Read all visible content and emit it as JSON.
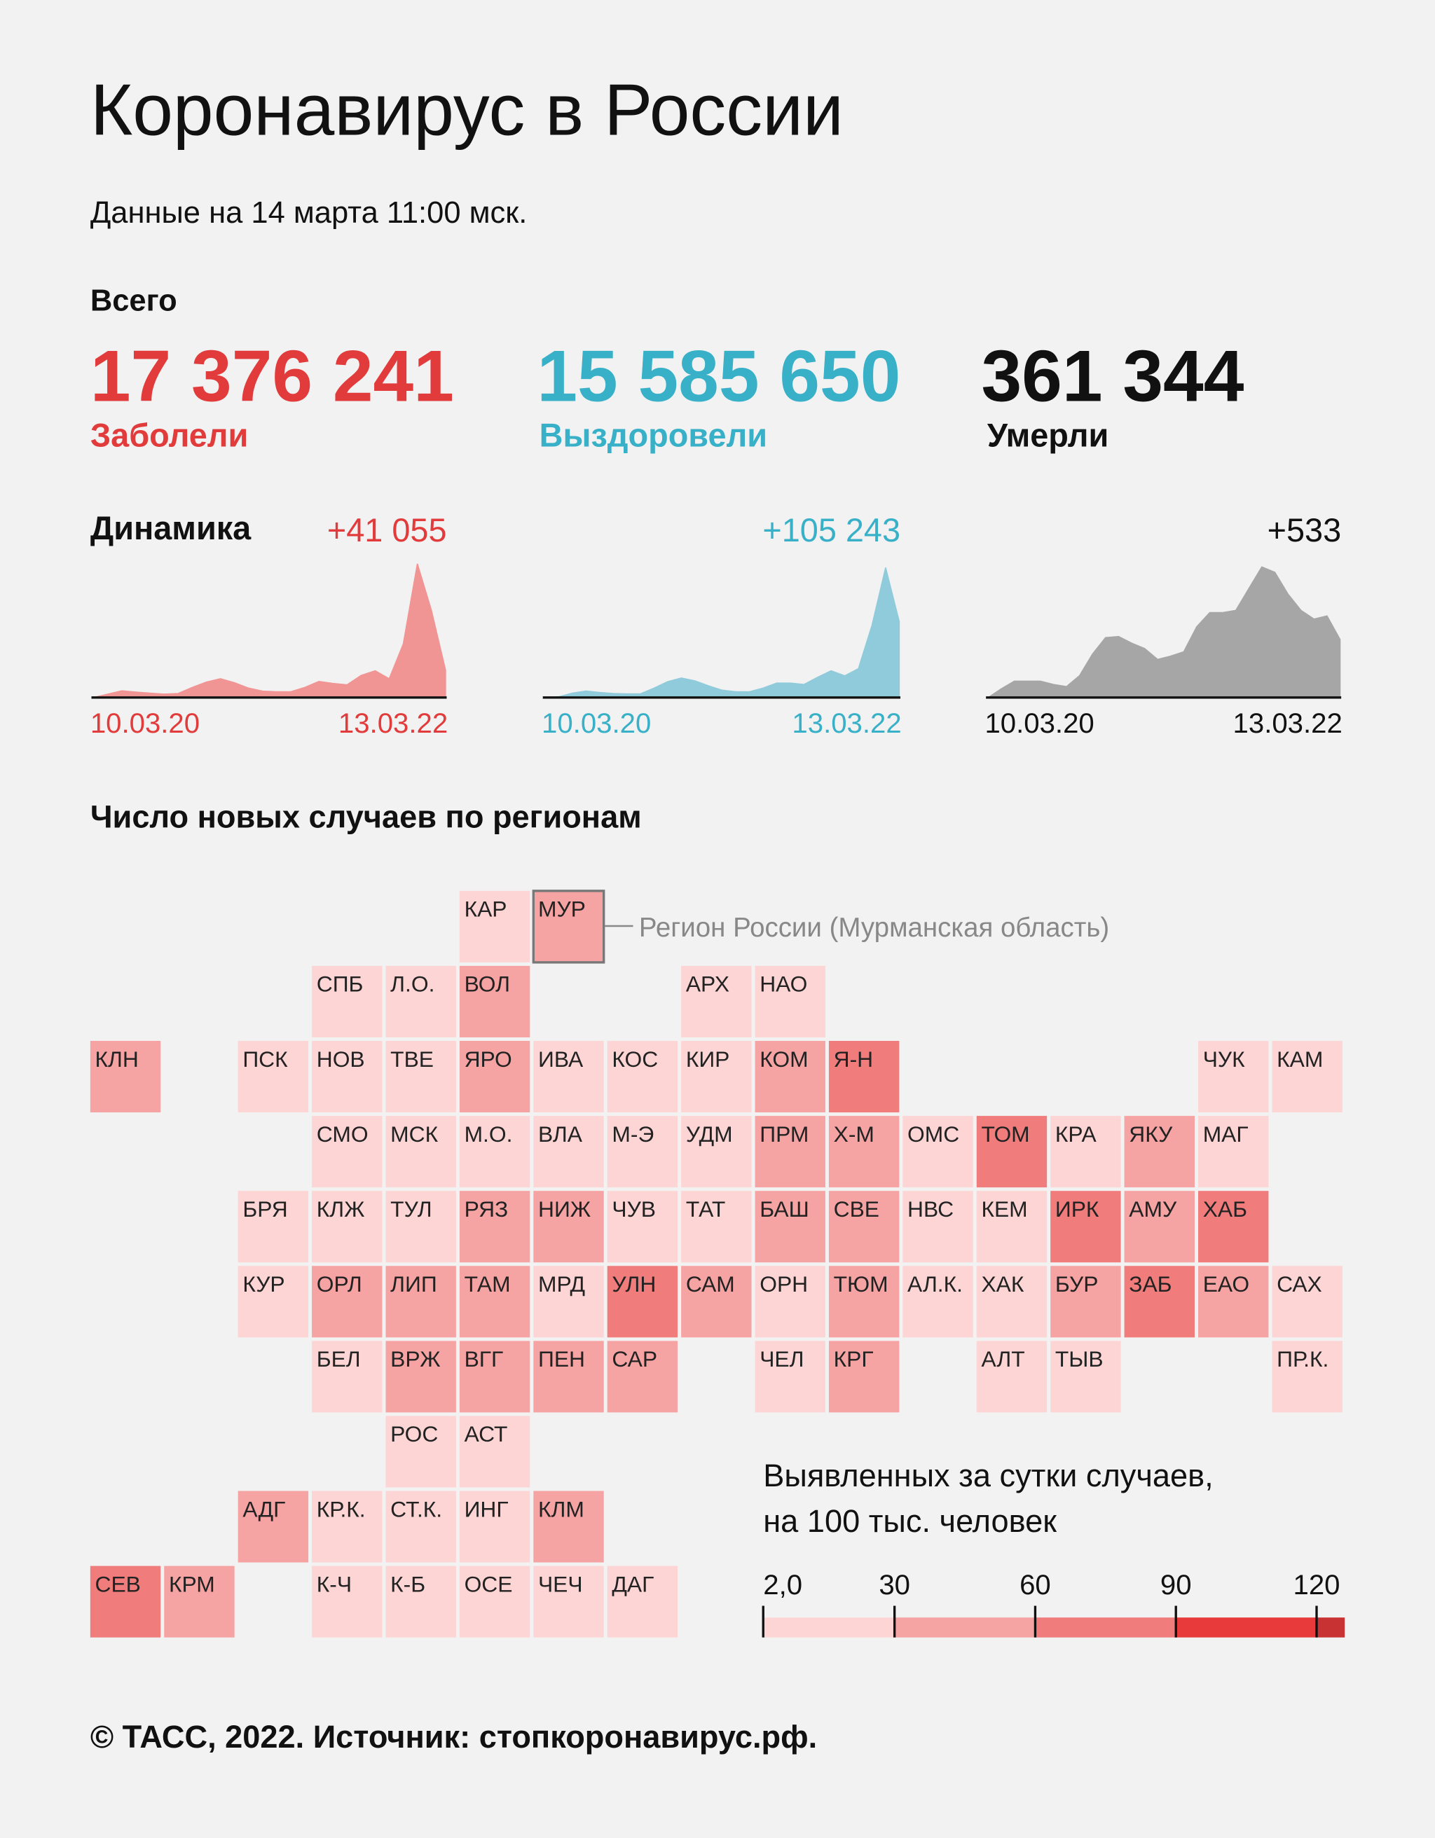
{
  "header": {
    "title": "Коронавирус в России",
    "subtitle": "Данные на 14 марта 11:00 мск."
  },
  "totals": {
    "heading": "Всего",
    "items": [
      {
        "value": "17 376 241",
        "label": "Заболели",
        "color": "#e23b3b"
      },
      {
        "value": "15 585 650",
        "label": "Выздоровели",
        "color": "#38b0c8"
      },
      {
        "value": "361 344",
        "label": "Умерли",
        "color": "#111111"
      }
    ]
  },
  "dynamics": {
    "heading": "Динамика",
    "charts": [
      {
        "type": "area",
        "increment": "+41 055",
        "color": "#e23b3b",
        "fill": "#f19494",
        "x_start": "10.03.20",
        "x_end": "13.03.22",
        "ylim": [
          0,
          205000
        ],
        "values": [
          0,
          5000,
          10000,
          8000,
          6500,
          5000,
          6000,
          15000,
          23000,
          28000,
          22000,
          14000,
          9500,
          8500,
          8500,
          15000,
          24000,
          21000,
          19000,
          33000,
          40000,
          28000,
          80000,
          200000,
          130000,
          41055
        ]
      },
      {
        "type": "area",
        "increment": "+105 243",
        "color": "#38b0c8",
        "fill": "#8fcbda",
        "x_start": "10.03.20",
        "x_end": "13.03.22",
        "ylim": [
          0,
          190000
        ],
        "values": [
          0,
          1000,
          6000,
          9000,
          7000,
          5500,
          5000,
          5000,
          13000,
          22000,
          27000,
          23000,
          16000,
          10000,
          8000,
          8000,
          13000,
          20000,
          20000,
          18000,
          28000,
          37000,
          30000,
          40000,
          100000,
          180000,
          105243
        ]
      },
      {
        "type": "area",
        "increment": "+533",
        "color": "#111111",
        "fill": "#a6a6a6",
        "x_start": "10.03.20",
        "x_end": "13.03.22",
        "ylim": [
          0,
          1260
        ],
        "values": [
          0,
          80,
          150,
          150,
          150,
          120,
          100,
          200,
          400,
          550,
          560,
          500,
          450,
          350,
          380,
          420,
          650,
          780,
          780,
          800,
          1000,
          1200,
          1150,
          950,
          800,
          720,
          750,
          533
        ]
      }
    ]
  },
  "map": {
    "title": "Число новых случаев по регионам",
    "note": "Регион России (Мурманская область)",
    "regions": [
      {
        "label": "КАР",
        "color": "#fdd5d5"
      },
      {
        "label": "МУР",
        "color": "#f6a3a3"
      },
      {
        "label": "СПБ",
        "color": "#fdd5d5"
      },
      {
        "label": "Л.О.",
        "color": "#fdd5d5"
      },
      {
        "label": "ВОЛ",
        "color": "#f6a3a3"
      },
      {
        "label": "АРХ",
        "color": "#fdd5d5"
      },
      {
        "label": "НАО",
        "color": "#fdd5d5"
      },
      {
        "label": "КЛН",
        "color": "#f6a3a3"
      },
      {
        "label": "ПСК",
        "color": "#fdd5d5"
      },
      {
        "label": "НОВ",
        "color": "#fdd5d5"
      },
      {
        "label": "ТВЕ",
        "color": "#fdd5d5"
      },
      {
        "label": "ЯРО",
        "color": "#f6a3a3"
      },
      {
        "label": "ИВА",
        "color": "#fdd5d5"
      },
      {
        "label": "КОС",
        "color": "#fdd5d5"
      },
      {
        "label": "КИР",
        "color": "#fdd5d5"
      },
      {
        "label": "КОМ",
        "color": "#f6a3a3"
      },
      {
        "label": "Я-Н",
        "color": "#f07c7c"
      },
      {
        "label": "ЧУК",
        "color": "#fdd5d5"
      },
      {
        "label": "КАМ",
        "color": "#fdd5d5"
      },
      {
        "label": "СМО",
        "color": "#fdd5d5"
      },
      {
        "label": "МСК",
        "color": "#fdd5d5"
      },
      {
        "label": "М.О.",
        "color": "#fdd5d5"
      },
      {
        "label": "ВЛА",
        "color": "#fdd5d5"
      },
      {
        "label": "М-Э",
        "color": "#fdd5d5"
      },
      {
        "label": "УДМ",
        "color": "#fdd5d5"
      },
      {
        "label": "ПРМ",
        "color": "#f6a3a3"
      },
      {
        "label": "Х-М",
        "color": "#f6a3a3"
      },
      {
        "label": "ОМС",
        "color": "#fdd5d5"
      },
      {
        "label": "ТОМ",
        "color": "#f07c7c"
      },
      {
        "label": "КРА",
        "color": "#fdd5d5"
      },
      {
        "label": "ЯКУ",
        "color": "#f6a3a3"
      },
      {
        "label": "МАГ",
        "color": "#fdd5d5"
      },
      {
        "label": "БРЯ",
        "color": "#fdd5d5"
      },
      {
        "label": "КЛЖ",
        "color": "#fdd5d5"
      },
      {
        "label": "ТУЛ",
        "color": "#fdd5d5"
      },
      {
        "label": "РЯЗ",
        "color": "#f6a3a3"
      },
      {
        "label": "НИЖ",
        "color": "#f6a3a3"
      },
      {
        "label": "ЧУВ",
        "color": "#fdd5d5"
      },
      {
        "label": "ТАТ",
        "color": "#fdd5d5"
      },
      {
        "label": "БАШ",
        "color": "#f6a3a3"
      },
      {
        "label": "СВЕ",
        "color": "#f6a3a3"
      },
      {
        "label": "НВС",
        "color": "#fdd5d5"
      },
      {
        "label": "КЕМ",
        "color": "#fdd5d5"
      },
      {
        "label": "ИРК",
        "color": "#f07c7c"
      },
      {
        "label": "АМУ",
        "color": "#f6a3a3"
      },
      {
        "label": "ХАБ",
        "color": "#f07c7c"
      },
      {
        "label": "КУР",
        "color": "#fdd5d5"
      },
      {
        "label": "ОРЛ",
        "color": "#f6a3a3"
      },
      {
        "label": "ЛИП",
        "color": "#f6a3a3"
      },
      {
        "label": "ТАМ",
        "color": "#f6a3a3"
      },
      {
        "label": "МРД",
        "color": "#fdd5d5"
      },
      {
        "label": "УЛН",
        "color": "#f07c7c"
      },
      {
        "label": "САМ",
        "color": "#f6a3a3"
      },
      {
        "label": "ОРН",
        "color": "#fdd5d5"
      },
      {
        "label": "ТЮМ",
        "color": "#f6a3a3"
      },
      {
        "label": "АЛ.К.",
        "color": "#fdd5d5"
      },
      {
        "label": "ХАК",
        "color": "#fdd5d5"
      },
      {
        "label": "БУР",
        "color": "#f6a3a3"
      },
      {
        "label": "ЗАБ",
        "color": "#f07c7c"
      },
      {
        "label": "ЕАО",
        "color": "#f6a3a3"
      },
      {
        "label": "САХ",
        "color": "#fdd5d5"
      },
      {
        "label": "БЕЛ",
        "color": "#fdd5d5"
      },
      {
        "label": "ВРЖ",
        "color": "#f6a3a3"
      },
      {
        "label": "ВГГ",
        "color": "#f6a3a3"
      },
      {
        "label": "ПЕН",
        "color": "#f6a3a3"
      },
      {
        "label": "САР",
        "color": "#f6a3a3"
      },
      {
        "label": "ЧЕЛ",
        "color": "#fdd5d5"
      },
      {
        "label": "КРГ",
        "color": "#f6a3a3"
      },
      {
        "label": "АЛТ",
        "color": "#fdd5d5"
      },
      {
        "label": "ТЫВ",
        "color": "#fdd5d5"
      },
      {
        "label": "ПР.К.",
        "color": "#fdd5d5"
      },
      {
        "label": "РОС",
        "color": "#fdd5d5"
      },
      {
        "label": "АСТ",
        "color": "#fdd5d5"
      },
      {
        "label": "АДГ",
        "color": "#f6a3a3"
      },
      {
        "label": "КР.К.",
        "color": "#fdd5d5"
      },
      {
        "label": "СТ.К.",
        "color": "#fdd5d5"
      },
      {
        "label": "ИНГ",
        "color": "#fdd5d5"
      },
      {
        "label": "КЛМ",
        "color": "#f6a3a3"
      },
      {
        "label": "СЕВ",
        "color": "#f07c7c"
      },
      {
        "label": "КРМ",
        "color": "#f6a3a3"
      },
      {
        "label": "К-Ч",
        "color": "#fdd5d5"
      },
      {
        "label": "К-Б",
        "color": "#fdd5d5"
      },
      {
        "label": "ОСЕ",
        "color": "#fdd5d5"
      },
      {
        "label": "ЧЕЧ",
        "color": "#fdd5d5"
      },
      {
        "label": "ДАГ",
        "color": "#fdd5d5"
      }
    ]
  },
  "legend": {
    "title": [
      "Выявленных за сутки случаев,",
      "на 100 тыс. человек"
    ],
    "xlim": [
      2,
      126
    ],
    "ticks": [
      {
        "value": 2,
        "label": "2,0"
      },
      30,
      60,
      90,
      120
    ],
    "colors": [
      "#fdd5d5",
      "#f6a3a3",
      "#f07c7c",
      "#e83a3a",
      "#c83232"
    ]
  },
  "footer": "© ТАСС, 2022. Источник: стопкоронавирус.рф."
}
